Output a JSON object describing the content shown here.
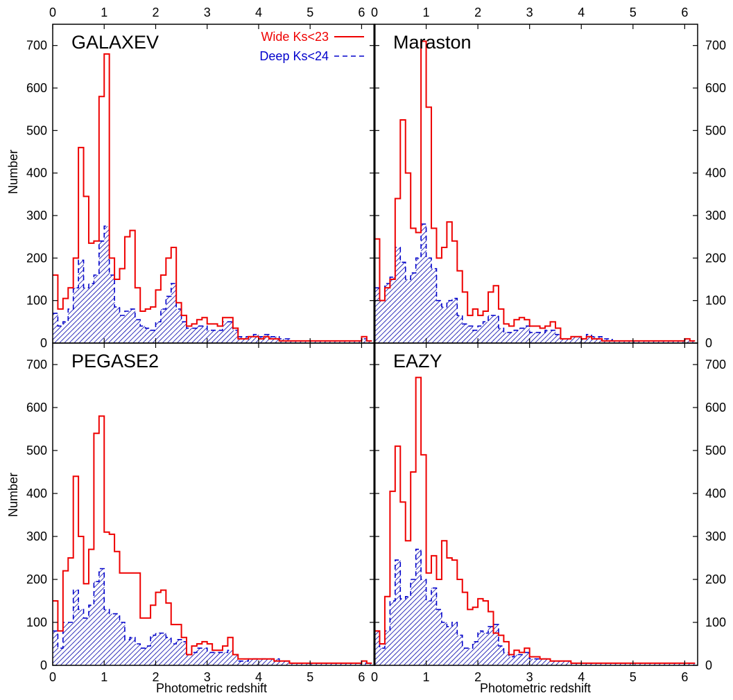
{
  "colors": {
    "wide": "#ee0000",
    "deep": "#0000cc",
    "deep_fill": "#0000aa",
    "axes": "#000000",
    "background": "#ffffff"
  },
  "axis_labels": {
    "x": "Photometric redshift",
    "y": "Number"
  },
  "legend": {
    "placement": "top-right of first panel",
    "wide": "Wide Ks<23",
    "deep": "Deep Ks<24"
  },
  "chart_data": [
    {
      "type": "histogram",
      "panel": "top-left",
      "title": "GALAXEV",
      "xlabel": "",
      "ylabel": "Number",
      "xlim": [
        0,
        6.25
      ],
      "ylim": [
        0,
        750
      ],
      "x_ticks": [
        0,
        1,
        2,
        3,
        4,
        5,
        6
      ],
      "y_ticks": [
        0,
        100,
        200,
        300,
        400,
        500,
        600,
        700
      ],
      "bin_width": 0.1,
      "bins_start": [
        0.0,
        0.1,
        0.2,
        0.3,
        0.4,
        0.5,
        0.6,
        0.7,
        0.8,
        0.9,
        1.0,
        1.1,
        1.2,
        1.3,
        1.4,
        1.5,
        1.6,
        1.7,
        1.8,
        1.9,
        2.0,
        2.1,
        2.2,
        2.3,
        2.4,
        2.5,
        2.6,
        2.7,
        2.8,
        2.9,
        3.0,
        3.1,
        3.2,
        3.3,
        3.4,
        3.5,
        3.6,
        3.7,
        3.8,
        3.9,
        4.0,
        4.1,
        4.2,
        4.3,
        4.4,
        4.5,
        4.6,
        4.7,
        4.8,
        4.9,
        5.0,
        5.1,
        5.2,
        5.3,
        5.4,
        5.5,
        5.6,
        5.7,
        5.8,
        5.9,
        6.0,
        6.1
      ],
      "series": [
        {
          "name": "Wide Ks<23",
          "values": [
            160,
            80,
            105,
            130,
            200,
            460,
            345,
            235,
            240,
            580,
            680,
            200,
            150,
            175,
            250,
            265,
            130,
            75,
            80,
            85,
            125,
            160,
            200,
            225,
            95,
            65,
            40,
            45,
            55,
            60,
            45,
            45,
            40,
            60,
            60,
            35,
            10,
            10,
            15,
            15,
            10,
            15,
            10,
            10,
            5,
            5,
            5,
            5,
            5,
            5,
            5,
            5,
            5,
            5,
            5,
            5,
            5,
            5,
            5,
            5,
            15,
            5
          ]
        },
        {
          "name": "Deep Ks<24",
          "values": [
            70,
            40,
            50,
            80,
            130,
            195,
            130,
            140,
            160,
            240,
            275,
            160,
            85,
            65,
            75,
            80,
            55,
            40,
            35,
            30,
            50,
            80,
            110,
            140,
            80,
            50,
            35,
            35,
            40,
            40,
            30,
            30,
            30,
            50,
            50,
            30,
            15,
            15,
            15,
            20,
            15,
            20,
            15,
            15,
            10,
            10,
            5,
            5,
            5,
            5,
            5,
            5,
            5,
            5,
            5,
            5,
            5,
            5,
            5,
            5,
            10,
            5
          ]
        }
      ]
    },
    {
      "type": "histogram",
      "panel": "top-right",
      "title": "Maraston",
      "xlabel": "",
      "ylabel": "",
      "xlim": [
        0,
        6.25
      ],
      "ylim": [
        0,
        750
      ],
      "x_ticks": [
        0,
        1,
        2,
        3,
        4,
        5,
        6
      ],
      "y_ticks": [
        0,
        100,
        200,
        300,
        400,
        500,
        600,
        700
      ],
      "bin_width": 0.1,
      "bins_start": [
        0.0,
        0.1,
        0.2,
        0.3,
        0.4,
        0.5,
        0.6,
        0.7,
        0.8,
        0.9,
        1.0,
        1.1,
        1.2,
        1.3,
        1.4,
        1.5,
        1.6,
        1.7,
        1.8,
        1.9,
        2.0,
        2.1,
        2.2,
        2.3,
        2.4,
        2.5,
        2.6,
        2.7,
        2.8,
        2.9,
        3.0,
        3.1,
        3.2,
        3.3,
        3.4,
        3.5,
        3.6,
        3.7,
        3.8,
        3.9,
        4.0,
        4.1,
        4.2,
        4.3,
        4.4,
        4.5,
        4.6,
        4.7,
        4.8,
        4.9,
        5.0,
        5.1,
        5.2,
        5.3,
        5.4,
        5.5,
        5.6,
        5.7,
        5.8,
        5.9,
        6.0,
        6.1
      ],
      "series": [
        {
          "name": "Wide Ks<23",
          "values": [
            245,
            100,
            130,
            150,
            340,
            525,
            400,
            270,
            260,
            710,
            555,
            270,
            200,
            225,
            285,
            240,
            170,
            120,
            65,
            80,
            65,
            75,
            120,
            135,
            80,
            45,
            40,
            55,
            60,
            55,
            40,
            40,
            35,
            40,
            50,
            35,
            10,
            10,
            15,
            15,
            10,
            15,
            10,
            10,
            5,
            5,
            5,
            5,
            5,
            5,
            5,
            5,
            5,
            5,
            5,
            5,
            5,
            5,
            5,
            5,
            10,
            5
          ]
        },
        {
          "name": "Deep Ks<24",
          "values": [
            130,
            100,
            140,
            155,
            225,
            190,
            150,
            165,
            200,
            280,
            200,
            175,
            100,
            85,
            100,
            105,
            65,
            45,
            40,
            30,
            40,
            50,
            65,
            65,
            35,
            25,
            25,
            30,
            35,
            40,
            25,
            25,
            25,
            30,
            30,
            20,
            10,
            10,
            15,
            15,
            10,
            20,
            15,
            15,
            10,
            10,
            5,
            5,
            5,
            5,
            5,
            5,
            5,
            5,
            5,
            5,
            5,
            5,
            5,
            5,
            10,
            5
          ]
        }
      ]
    },
    {
      "type": "histogram",
      "panel": "bottom-left",
      "title": "PEGASE2",
      "xlabel": "Photometric redshift",
      "ylabel": "Number",
      "xlim": [
        0,
        6.25
      ],
      "ylim": [
        0,
        750
      ],
      "x_ticks": [
        0,
        1,
        2,
        3,
        4,
        5,
        6
      ],
      "y_ticks": [
        0,
        100,
        200,
        300,
        400,
        500,
        600,
        700
      ],
      "bin_width": 0.1,
      "bins_start": [
        0.0,
        0.1,
        0.2,
        0.3,
        0.4,
        0.5,
        0.6,
        0.7,
        0.8,
        0.9,
        1.0,
        1.1,
        1.2,
        1.3,
        1.4,
        1.5,
        1.6,
        1.7,
        1.8,
        1.9,
        2.0,
        2.1,
        2.2,
        2.3,
        2.4,
        2.5,
        2.6,
        2.7,
        2.8,
        2.9,
        3.0,
        3.1,
        3.2,
        3.3,
        3.4,
        3.5,
        3.6,
        3.7,
        3.8,
        3.9,
        4.0,
        4.1,
        4.2,
        4.3,
        4.4,
        4.5,
        4.6,
        4.7,
        4.8,
        4.9,
        5.0,
        5.1,
        5.2,
        5.3,
        5.4,
        5.5,
        5.6,
        5.7,
        5.8,
        5.9,
        6.0,
        6.1
      ],
      "series": [
        {
          "name": "Wide Ks<23",
          "values": [
            150,
            80,
            220,
            250,
            440,
            300,
            190,
            270,
            540,
            580,
            310,
            305,
            265,
            215,
            215,
            215,
            215,
            110,
            110,
            140,
            170,
            175,
            145,
            95,
            95,
            65,
            25,
            45,
            50,
            55,
            50,
            35,
            35,
            45,
            65,
            25,
            15,
            15,
            15,
            15,
            15,
            15,
            15,
            10,
            10,
            10,
            5,
            5,
            5,
            5,
            5,
            5,
            5,
            5,
            5,
            5,
            5,
            5,
            5,
            5,
            10,
            5
          ]
        },
        {
          "name": "Deep Ks<24",
          "values": [
            80,
            40,
            100,
            100,
            175,
            130,
            110,
            140,
            195,
            225,
            130,
            120,
            120,
            100,
            60,
            65,
            50,
            40,
            45,
            70,
            75,
            75,
            65,
            50,
            60,
            55,
            25,
            30,
            40,
            40,
            30,
            30,
            30,
            30,
            35,
            25,
            10,
            10,
            15,
            15,
            15,
            15,
            15,
            15,
            10,
            10,
            5,
            5,
            5,
            5,
            5,
            5,
            5,
            5,
            5,
            5,
            5,
            5,
            5,
            5,
            5,
            5
          ]
        }
      ]
    },
    {
      "type": "histogram",
      "panel": "bottom-right",
      "title": "EAZY",
      "xlabel": "Photometric redshift",
      "ylabel": "",
      "xlim": [
        0,
        6.25
      ],
      "ylim": [
        0,
        750
      ],
      "x_ticks": [
        0,
        1,
        2,
        3,
        4,
        5,
        6
      ],
      "y_ticks": [
        0,
        100,
        200,
        300,
        400,
        500,
        600,
        700
      ],
      "bin_width": 0.1,
      "bins_start": [
        0.0,
        0.1,
        0.2,
        0.3,
        0.4,
        0.5,
        0.6,
        0.7,
        0.8,
        0.9,
        1.0,
        1.1,
        1.2,
        1.3,
        1.4,
        1.5,
        1.6,
        1.7,
        1.8,
        1.9,
        2.0,
        2.1,
        2.2,
        2.3,
        2.4,
        2.5,
        2.6,
        2.7,
        2.8,
        2.9,
        3.0,
        3.1,
        3.2,
        3.3,
        3.4,
        3.5,
        3.6,
        3.7,
        3.8,
        3.9,
        4.0,
        4.1,
        4.2,
        4.3,
        4.4,
        4.5,
        4.6,
        4.7,
        4.8,
        4.9,
        5.0,
        5.1,
        5.2,
        5.3,
        5.4,
        5.5,
        5.6,
        5.7,
        5.8,
        5.9,
        6.0,
        6.1
      ],
      "series": [
        {
          "name": "Wide Ks<23",
          "values": [
            80,
            50,
            160,
            405,
            510,
            380,
            290,
            450,
            670,
            490,
            215,
            255,
            200,
            290,
            250,
            245,
            200,
            170,
            130,
            135,
            155,
            150,
            125,
            75,
            70,
            55,
            25,
            35,
            30,
            40,
            20,
            20,
            15,
            15,
            10,
            10,
            10,
            10,
            5,
            5,
            5,
            5,
            5,
            5,
            5,
            5,
            5,
            5,
            5,
            5,
            5,
            5,
            5,
            5,
            5,
            5,
            5,
            5,
            5,
            5,
            5,
            5
          ]
        },
        {
          "name": "Deep Ks<24",
          "values": [
            80,
            40,
            80,
            150,
            245,
            155,
            160,
            200,
            270,
            200,
            150,
            180,
            130,
            100,
            90,
            100,
            70,
            40,
            40,
            55,
            80,
            75,
            90,
            95,
            45,
            30,
            20,
            25,
            25,
            30,
            15,
            15,
            15,
            15,
            10,
            10,
            10,
            10,
            5,
            5,
            5,
            5,
            5,
            5,
            5,
            5,
            5,
            5,
            5,
            5,
            5,
            5,
            5,
            5,
            5,
            5,
            5,
            5,
            5,
            5,
            5,
            5
          ]
        }
      ]
    }
  ]
}
